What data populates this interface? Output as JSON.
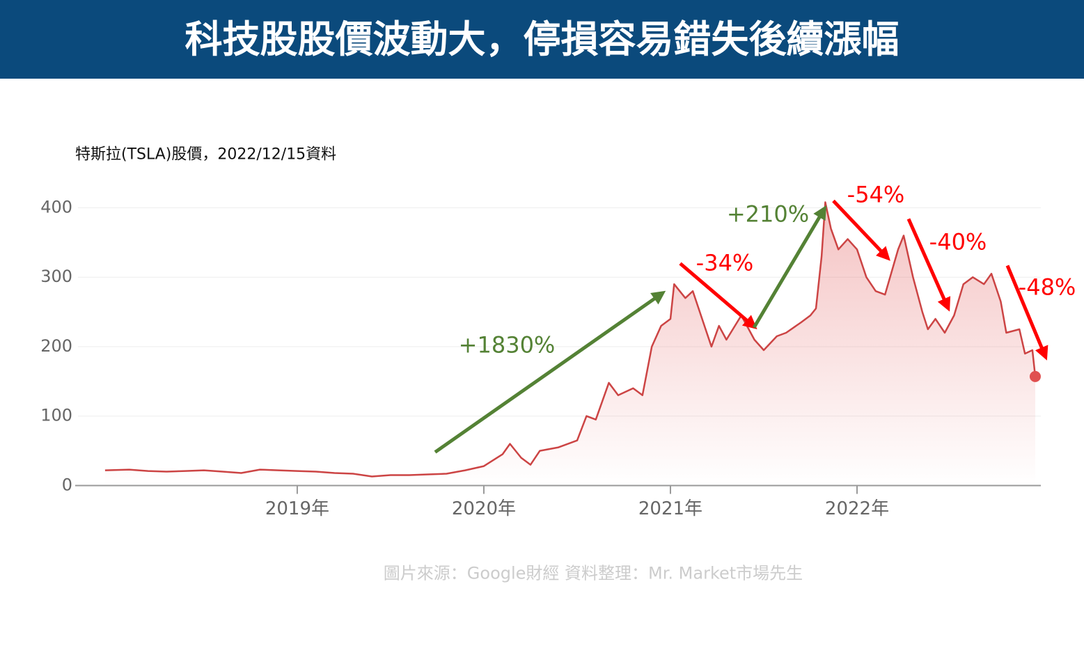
{
  "title": "科技股股價波動大，停損容易錯失後續漲幅",
  "chart_data": {
    "type": "line",
    "subtitle": "特斯拉(TSLA)股價，2022/12/15資料",
    "source": "圖片來源：Google財經  資料整理：Mr. Market市場先生",
    "x": [
      2017.97,
      2018.1,
      2018.2,
      2018.3,
      2018.4,
      2018.5,
      2018.6,
      2018.7,
      2018.8,
      2018.9,
      2019.0,
      2019.1,
      2019.2,
      2019.3,
      2019.4,
      2019.5,
      2019.6,
      2019.7,
      2019.8,
      2019.9,
      2020.0,
      2020.1,
      2020.14,
      2020.2,
      2020.25,
      2020.3,
      2020.4,
      2020.5,
      2020.55,
      2020.6,
      2020.67,
      2020.72,
      2020.8,
      2020.85,
      2020.9,
      2020.95,
      2021.0,
      2021.02,
      2021.08,
      2021.12,
      2021.17,
      2021.22,
      2021.26,
      2021.3,
      2021.38,
      2021.45,
      2021.5,
      2021.57,
      2021.62,
      2021.7,
      2021.75,
      2021.78,
      2021.81,
      2021.83,
      2021.86,
      2021.9,
      2021.95,
      2022.0,
      2022.05,
      2022.1,
      2022.15,
      2022.22,
      2022.25,
      2022.3,
      2022.35,
      2022.38,
      2022.42,
      2022.47,
      2022.52,
      2022.57,
      2022.62,
      2022.68,
      2022.72,
      2022.77,
      2022.8,
      2022.87,
      2022.9,
      2022.94,
      2022.955
    ],
    "series": [
      {
        "color": "#cc4444",
        "values": [
          22,
          23,
          21,
          20,
          21,
          22,
          20,
          18,
          23,
          22,
          21,
          20,
          18,
          17,
          13,
          15,
          15,
          16,
          17,
          22,
          28,
          45,
          60,
          40,
          30,
          50,
          55,
          65,
          100,
          95,
          148,
          130,
          140,
          130,
          200,
          230,
          240,
          290,
          270,
          280,
          240,
          200,
          230,
          210,
          245,
          210,
          195,
          215,
          220,
          235,
          245,
          255,
          330,
          408,
          370,
          340,
          355,
          340,
          300,
          280,
          275,
          340,
          360,
          300,
          250,
          225,
          240,
          220,
          245,
          290,
          300,
          290,
          305,
          265,
          220,
          225,
          190,
          195,
          157
        ]
      }
    ],
    "xlim": [
      2017.81,
      2022.985
    ],
    "xticks": [
      {
        "value": 2019,
        "label": "2019年"
      },
      {
        "value": 2020,
        "label": "2020年"
      },
      {
        "value": 2021,
        "label": "2021年"
      },
      {
        "value": 2022,
        "label": "2022年"
      }
    ],
    "ylim": [
      0,
      410
    ],
    "yticks": [
      0,
      100,
      200,
      300,
      400
    ],
    "grid": true,
    "annotations": [
      {
        "text": "+1830%",
        "color": "#548235"
      },
      {
        "text": "-34%",
        "color": "#ff0000"
      },
      {
        "text": "+210%",
        "color": "#548235"
      },
      {
        "text": "-54%",
        "color": "#ff0000"
      },
      {
        "text": "-40%",
        "color": "#ff0000"
      },
      {
        "text": "-48%",
        "color": "#ff0000"
      }
    ]
  }
}
